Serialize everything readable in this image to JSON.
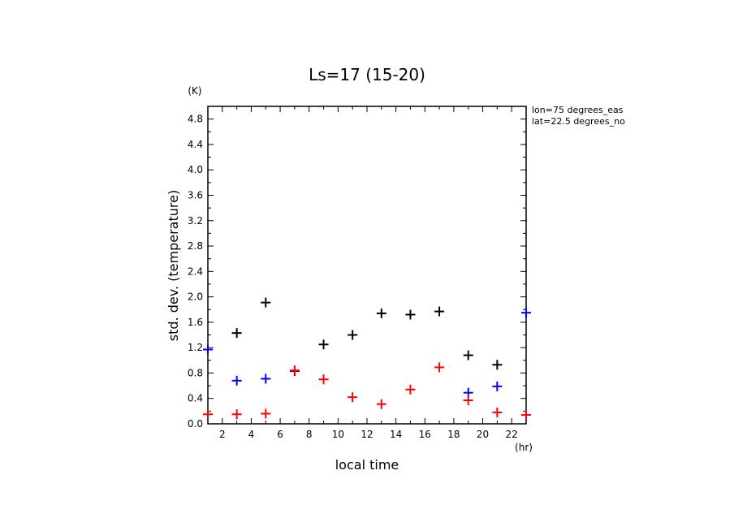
{
  "chart_data": {
    "type": "scatter",
    "title": "Ls=17 (15-20)",
    "xlabel": "local time",
    "ylabel": "std. dev. (temperature)",
    "x_unit": "(hr)",
    "y_unit": "(K)",
    "xlim": [
      1,
      23
    ],
    "ylim": [
      0,
      5.0
    ],
    "x_ticks": [
      2,
      4,
      6,
      8,
      10,
      12,
      14,
      16,
      18,
      20,
      22
    ],
    "y_ticks": [
      0.0,
      0.4,
      0.8,
      1.2,
      1.6,
      2.0,
      2.4,
      2.8,
      3.2,
      3.6,
      4.0,
      4.4,
      4.8
    ],
    "x_ticks_minor": [
      1,
      2,
      3,
      4,
      5,
      6,
      7,
      8,
      9,
      10,
      11,
      12,
      13,
      14,
      15,
      16,
      17,
      18,
      19,
      20,
      21,
      22,
      23
    ],
    "y_ticks_minor": [
      0.0,
      0.2,
      0.4,
      0.6,
      0.8,
      1.0,
      1.2,
      1.4,
      1.6,
      1.8,
      2.0,
      2.2,
      2.4,
      2.6,
      2.8,
      3.0,
      3.2,
      3.4,
      3.6,
      3.8,
      4.0,
      4.2,
      4.4,
      4.6,
      4.8,
      5.0
    ],
    "annotations": [
      "lon=75 degrees_eas",
      "lat=22.5 degrees_no"
    ],
    "marker": "+",
    "grid": false,
    "series": [
      {
        "color": "#000000",
        "points": [
          {
            "x": 3,
            "y": 1.43
          },
          {
            "x": 5,
            "y": 1.91
          },
          {
            "x": 7,
            "y": 0.83
          },
          {
            "x": 9,
            "y": 1.25
          },
          {
            "x": 11,
            "y": 1.4
          },
          {
            "x": 13,
            "y": 1.74
          },
          {
            "x": 15,
            "y": 1.72
          },
          {
            "x": 17,
            "y": 1.77
          },
          {
            "x": 19,
            "y": 1.08
          },
          {
            "x": 21,
            "y": 0.93
          }
        ]
      },
      {
        "color": "#0000ff",
        "points": [
          {
            "x": 1,
            "y": 1.17
          },
          {
            "x": 3,
            "y": 0.68
          },
          {
            "x": 5,
            "y": 0.71
          },
          {
            "x": 7,
            "y": 0.84
          },
          {
            "x": 19,
            "y": 0.49
          },
          {
            "x": 21,
            "y": 0.59
          },
          {
            "x": 23,
            "y": 1.75
          }
        ]
      },
      {
        "color": "#ff0000",
        "points": [
          {
            "x": 1,
            "y": 0.15
          },
          {
            "x": 3,
            "y": 0.15
          },
          {
            "x": 5,
            "y": 0.16
          },
          {
            "x": 7,
            "y": 0.84
          },
          {
            "x": 9,
            "y": 0.7
          },
          {
            "x": 11,
            "y": 0.42
          },
          {
            "x": 13,
            "y": 0.31
          },
          {
            "x": 15,
            "y": 0.54
          },
          {
            "x": 17,
            "y": 0.89
          },
          {
            "x": 19,
            "y": 0.37
          },
          {
            "x": 21,
            "y": 0.18
          },
          {
            "x": 23,
            "y": 0.14
          }
        ]
      }
    ]
  }
}
